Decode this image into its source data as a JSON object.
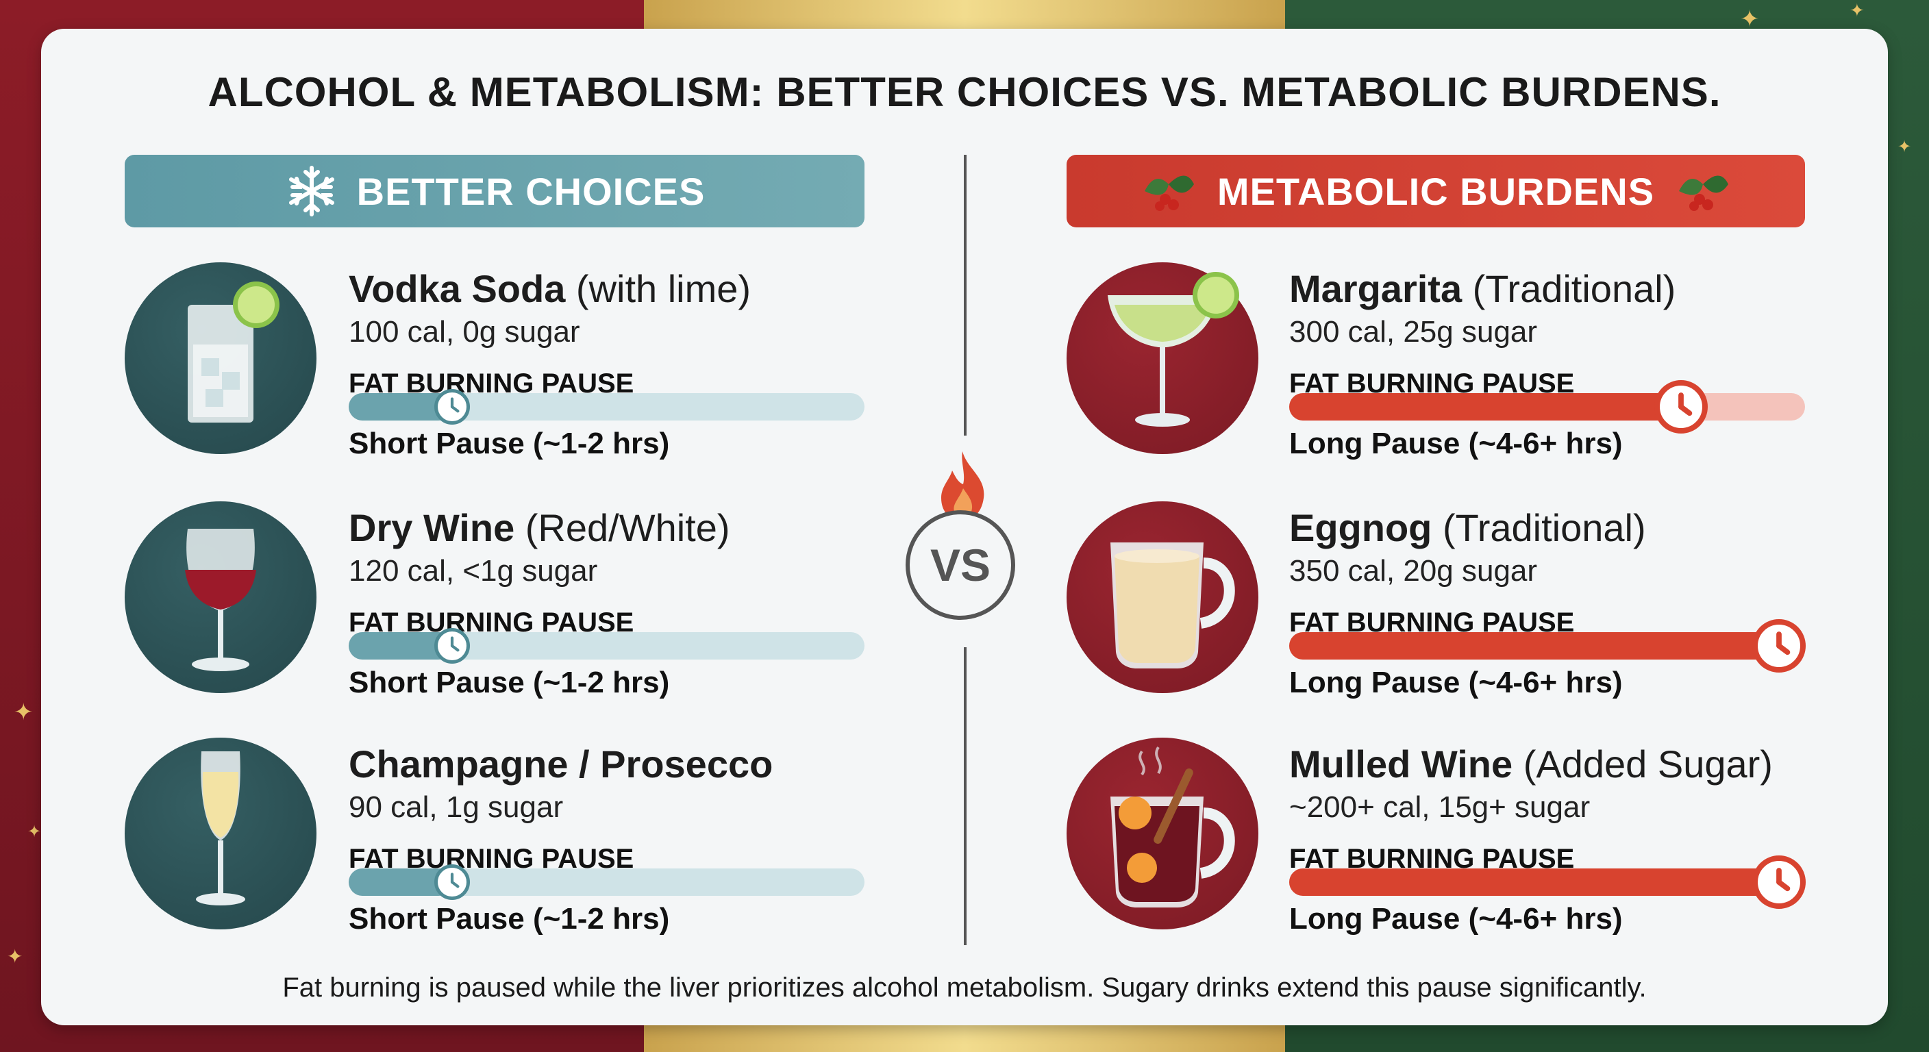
{
  "title": "ALCOHOL & METABOLISM: BETTER CHOICES VS. METABOLIC BURDENS.",
  "colors": {
    "teal": "#6ba3ad",
    "red": "#d8432f",
    "bg_red": "#8c1c27",
    "bg_green": "#2c5a3a",
    "bg_gold": "#e5c874"
  },
  "better": {
    "header": "BETTER CHOICES",
    "icon": "snowflake-icon",
    "drinks": [
      {
        "name": "Vodka Soda",
        "detail": " (with lime)",
        "stats": "100 cal, 0g sugar",
        "bar_label": "FAT BURNING PAUSE",
        "pause": "Short Pause (~1-2 hrs)",
        "pause_fraction": 0.2,
        "icon": "highball-glass-icon"
      },
      {
        "name": "Dry Wine",
        "detail": " (Red/White)",
        "stats": "120 cal, <1g sugar",
        "bar_label": "FAT BURNING PAUSE",
        "pause": "Short Pause (~1-2 hrs)",
        "pause_fraction": 0.2,
        "icon": "wine-glass-icon"
      },
      {
        "name": "Champagne / Prosecco",
        "detail": "",
        "stats": "90 cal, 1g sugar",
        "bar_label": "FAT BURNING PAUSE",
        "pause": "Short Pause (~1-2 hrs)",
        "pause_fraction": 0.2,
        "icon": "champagne-flute-icon"
      }
    ]
  },
  "burdens": {
    "header": "METABOLIC BURDENS",
    "icon": "holly-icon",
    "drinks": [
      {
        "name": "Margarita",
        "detail": " (Traditional)",
        "stats": "300 cal, 25g sugar",
        "bar_label": "FAT BURNING PAUSE",
        "pause": "Long Pause (~4-6+ hrs)",
        "pause_fraction": 0.76,
        "icon": "margarita-glass-icon"
      },
      {
        "name": "Eggnog",
        "detail": " (Traditional)",
        "stats": "350 cal, 20g sugar",
        "bar_label": "FAT BURNING PAUSE",
        "pause": "Long Pause (~4-6+ hrs)",
        "pause_fraction": 0.95,
        "icon": "eggnog-mug-icon"
      },
      {
        "name": "Mulled Wine",
        "detail": " (Added Sugar)",
        "stats": "~200+ cal, 15g+ sugar",
        "bar_label": "FAT BURNING PAUSE",
        "pause": "Long Pause (~4-6+ hrs)",
        "pause_fraction": 0.95,
        "icon": "mulled-wine-mug-icon"
      }
    ]
  },
  "vs_label": "VS",
  "footer": "Fat burning is paused while the liver prioritizes alcohol metabolism. Sugary drinks extend this pause significantly."
}
